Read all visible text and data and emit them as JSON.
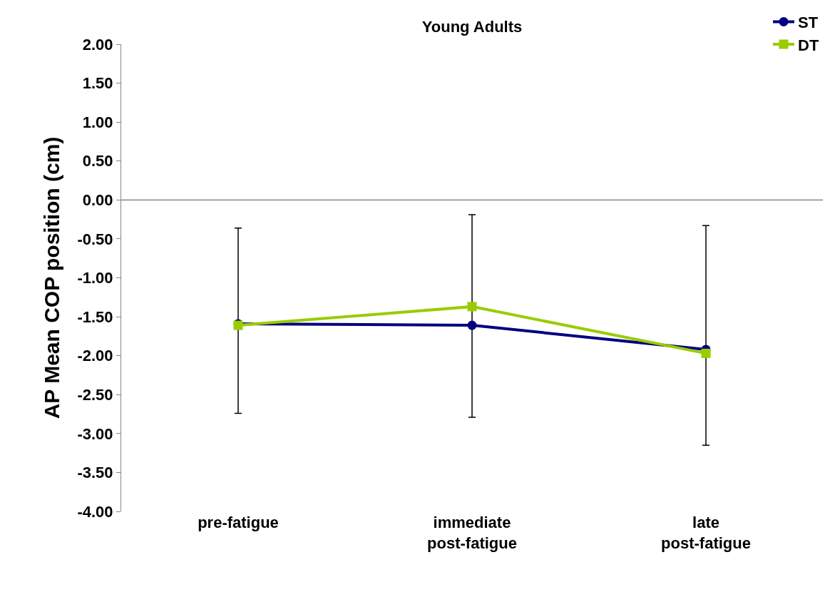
{
  "chart_data": {
    "type": "line",
    "title": "Young Adults",
    "ylabel": "AP Mean COP position (cm)",
    "categories": [
      "pre-fatigue",
      "immediate\npost-fatigue",
      "late\npost-fatigue"
    ],
    "series": [
      {
        "name": "ST",
        "color": "#000080",
        "marker": "circle",
        "values": [
          -1.59,
          -1.61,
          -1.92
        ],
        "errors": [
          [
            -2.74,
            -0.36
          ],
          [
            -2.79,
            -0.19
          ],
          [
            -3.15,
            -0.33
          ]
        ]
      },
      {
        "name": "DT",
        "color": "#99cc00",
        "marker": "square",
        "values": [
          -1.61,
          -1.37,
          -1.97
        ]
      }
    ],
    "ylim": [
      -4.0,
      2.0
    ],
    "yticks": [
      {
        "value": 2,
        "label": "2.00"
      },
      {
        "value": 1.5,
        "label": "1.50"
      },
      {
        "value": 1,
        "label": "1.00"
      },
      {
        "value": 0.5,
        "label": "0.50"
      },
      {
        "value": 0,
        "label": "0.00"
      },
      {
        "value": -0.5,
        "label": "-0.50"
      },
      {
        "value": -1,
        "label": "-1.00"
      },
      {
        "value": -1.5,
        "label": "-1.50"
      },
      {
        "value": -2,
        "label": "-2.00"
      },
      {
        "value": -2.5,
        "label": "-2.50"
      },
      {
        "value": -3,
        "label": "-3.00"
      },
      {
        "value": -3.5,
        "label": "-3.50"
      },
      {
        "value": -4,
        "label": "-4.00"
      }
    ],
    "ref_lines": [
      {
        "axis": "y",
        "value": 0,
        "color": "#555555"
      }
    ],
    "grid": false,
    "legend": "top right",
    "line_style": "solid"
  }
}
